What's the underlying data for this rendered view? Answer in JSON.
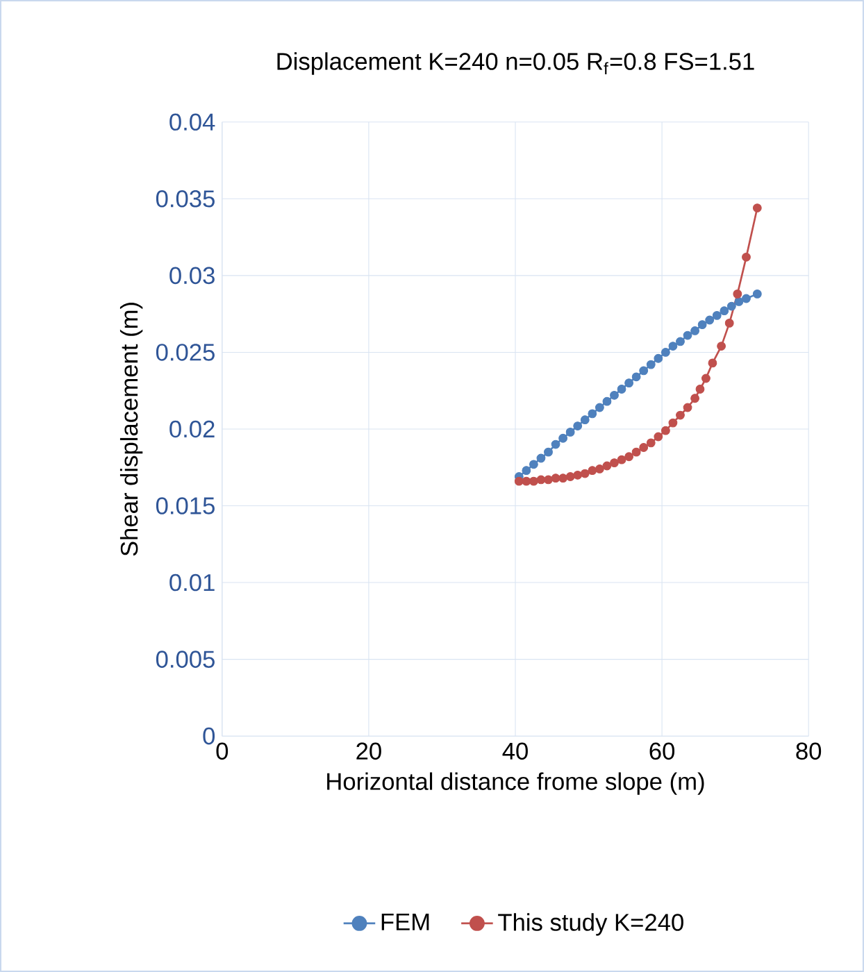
{
  "chart_data": {
    "type": "line",
    "title": "Displacement  K=240  n=0.05  R$_{f}$=0.8  FS=1.51",
    "xlabel": "Horizontal distance frome slope (m)",
    "ylabel": "Shear displacement (m)",
    "xlim": [
      0,
      80
    ],
    "xticks": [
      0,
      20,
      40,
      60,
      80
    ],
    "ylim": [
      0,
      0.04
    ],
    "yticks": [
      0,
      0.005,
      0.01,
      0.015,
      0.02,
      0.025,
      0.03,
      0.035,
      0.04
    ],
    "grid": true,
    "legend": "bottom",
    "marker": "circle",
    "line_style": "solid",
    "series": [
      {
        "name": "FEM",
        "color": "#4f81bd",
        "x": [
          40.5,
          41.5,
          42.5,
          43.5,
          44.5,
          45.5,
          46.5,
          47.5,
          48.5,
          49.5,
          50.5,
          51.5,
          52.5,
          53.5,
          54.5,
          55.5,
          56.5,
          57.5,
          58.5,
          59.5,
          60.5,
          61.5,
          62.5,
          63.5,
          64.5,
          65.5,
          66.5,
          67.5,
          68.5,
          69.5,
          70.5,
          71.5,
          73
        ],
        "values": [
          0.0169,
          0.0173,
          0.0177,
          0.0181,
          0.0185,
          0.019,
          0.0194,
          0.0198,
          0.0202,
          0.0206,
          0.021,
          0.0214,
          0.0218,
          0.0222,
          0.0226,
          0.023,
          0.0234,
          0.0238,
          0.0242,
          0.0246,
          0.025,
          0.0254,
          0.0257,
          0.0261,
          0.0264,
          0.0268,
          0.0271,
          0.0274,
          0.0277,
          0.028,
          0.0283,
          0.0285,
          0.0288
        ]
      },
      {
        "name": "This study  K=240",
        "color": "#c0504d",
        "x": [
          40.5,
          41.5,
          42.5,
          43.5,
          44.5,
          45.5,
          46.5,
          47.5,
          48.5,
          49.5,
          50.5,
          51.5,
          52.5,
          53.5,
          54.5,
          55.5,
          56.5,
          57.5,
          58.5,
          59.5,
          60.5,
          61.5,
          62.5,
          63.5,
          64.5,
          65.2,
          66,
          66.9,
          68.1,
          69.2,
          70.3,
          71.5,
          73
        ],
        "values": [
          0.0166,
          0.0166,
          0.0166,
          0.0167,
          0.0167,
          0.0168,
          0.0168,
          0.0169,
          0.017,
          0.0171,
          0.0173,
          0.0174,
          0.0176,
          0.0178,
          0.018,
          0.0182,
          0.0185,
          0.0188,
          0.0191,
          0.0195,
          0.0199,
          0.0204,
          0.0209,
          0.0214,
          0.022,
          0.0226,
          0.0233,
          0.0243,
          0.0254,
          0.0269,
          0.0288,
          0.0312,
          0.0344
        ]
      }
    ]
  }
}
